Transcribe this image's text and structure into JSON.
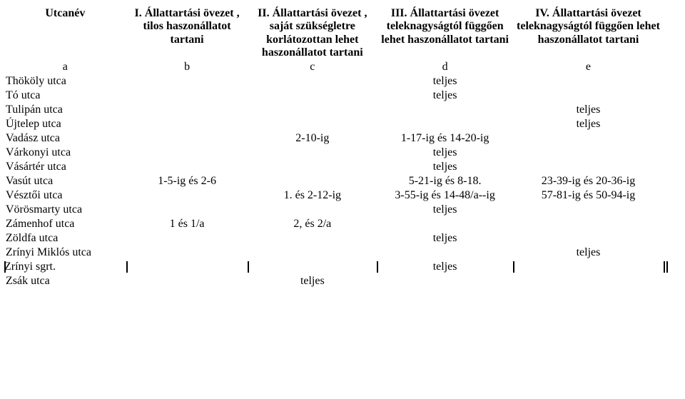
{
  "table": {
    "background_color": "#ffffff",
    "font_family": "Times New Roman",
    "font_size_pt": 12,
    "text_color": "#000000",
    "header_weight": "bold",
    "columns": [
      {
        "key": "a",
        "title": "Utcanév",
        "sub": "a",
        "align": "left"
      },
      {
        "key": "b",
        "title": "I. Állattartási övezet , tilos haszonállatot tartani",
        "sub": "b",
        "align": "center"
      },
      {
        "key": "c",
        "title": "II. Állattartási övezet , saját szükségletre korlátozottan lehet haszonállatot tartani",
        "sub": "c",
        "align": "center"
      },
      {
        "key": "d",
        "title": "III. Állattartási övezet teleknagyságtól függően lehet haszonállatot tartani",
        "sub": "d",
        "align": "center"
      },
      {
        "key": "e",
        "title": "IV. Állattartási övezet teleknagyságtól függően lehet haszonállatot tartani",
        "sub": "e",
        "align": "center"
      }
    ],
    "rows": [
      {
        "a": "Thököly utca",
        "b": "",
        "c": "",
        "d": "teljes",
        "e": ""
      },
      {
        "a": "Tó utca",
        "b": "",
        "c": "",
        "d": "teljes",
        "e": ""
      },
      {
        "a": "Tulipán utca",
        "b": "",
        "c": "",
        "d": "",
        "e": "teljes"
      },
      {
        "a": "Újtelep utca",
        "b": "",
        "c": "",
        "d": "",
        "e": "teljes"
      },
      {
        "a": "Vadász utca",
        "b": "",
        "c": "2-10-ig",
        "d": "1-17-ig és 14-20-ig",
        "e": ""
      },
      {
        "a": "Várkonyi utca",
        "b": "",
        "c": "",
        "d": "teljes",
        "e": ""
      },
      {
        "a": "Vásártér utca",
        "b": "",
        "c": "",
        "d": "teljes",
        "e": ""
      },
      {
        "a": "Vasút utca",
        "b": "1-5-ig és 2-6",
        "c": "",
        "d": "5-21-ig és 8-18.",
        "e": "23-39-ig és 20-36-ig"
      },
      {
        "a": "Vésztői utca",
        "b": "",
        "c": "1. és 2-12-ig",
        "d": "3-55-ig és 14-48/a--ig",
        "e": "57-81-ig és 50-94-ig"
      },
      {
        "a": "Vörösmarty utca",
        "b": "",
        "c": "",
        "d": "teljes",
        "e": ""
      },
      {
        "a": "Zámenhof utca",
        "b": "1 és 1/a",
        "c": "2, és 2/a",
        "d": "",
        "e": ""
      },
      {
        "a": "Zöldfa utca",
        "b": "",
        "c": "",
        "d": "teljes",
        "e": ""
      },
      {
        "a": "Zrínyi Miklós utca",
        "b": "",
        "c": "",
        "d": "",
        "e": "teljes"
      },
      {
        "a": "Zrínyi sgrt.",
        "b": "",
        "c": "",
        "d": "teljes",
        "e": "",
        "bars": true
      },
      {
        "a": "Zsák utca",
        "b": "",
        "c": "teljes",
        "d": "",
        "e": ""
      }
    ]
  }
}
